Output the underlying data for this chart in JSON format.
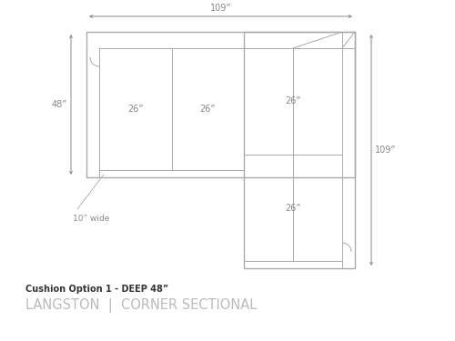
{
  "title_line1": "Cushion Option 1 - DEEP 48”",
  "title_line2": "LANGSTON  |  CORNER SECTIONAL",
  "dim_top": "109”",
  "dim_left": "48”",
  "dim_right": "109”",
  "dim_cushion_left1": "26”",
  "dim_cushion_left2": "26”",
  "dim_cushion_right1": "26”",
  "dim_cushion_right2": "26”",
  "dim_arm": "10” wide",
  "line_color": "#aaaaaa",
  "text_color": "#888888",
  "bg_color": "#ffffff",
  "arrow_color": "#888888",
  "label1_color": "#333333",
  "label2_color": "#bbbbbb"
}
